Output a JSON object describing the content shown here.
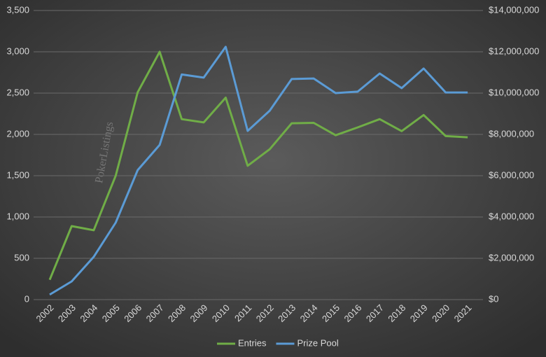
{
  "chart_data": {
    "type": "line",
    "watermark": "PokerListings",
    "categories": [
      "2002",
      "2003",
      "2004",
      "2005",
      "2006",
      "2007",
      "2008",
      "2009",
      "2010",
      "2011",
      "2012",
      "2013",
      "2014",
      "2015",
      "2016",
      "2017",
      "2018",
      "2019",
      "2020",
      "2021"
    ],
    "series": [
      {
        "name": "Entries",
        "color": "#70ad47",
        "values": [
          240,
          890,
          840,
          1500,
          2510,
          3000,
          2185,
          2145,
          2445,
          1620,
          1820,
          2135,
          2140,
          1990,
          2085,
          2185,
          2040,
          2235,
          1980,
          1965
        ]
      },
      {
        "name": "Prize Pool",
        "color": "#5b9bd5",
        "axis": "y2",
        "values": [
          240000,
          880000,
          2070000,
          3730000,
          6270000,
          7490000,
          10900000,
          10750000,
          12240000,
          8170000,
          9150000,
          10680000,
          10710000,
          10000000,
          10070000,
          10950000,
          10240000,
          11190000,
          10030000,
          10030000
        ]
      }
    ],
    "ylim": [
      0,
      3500
    ],
    "yticks": [
      0,
      500,
      {
        "value": 1000,
        "label": "1,000"
      },
      {
        "value": 1500,
        "label": "1,500"
      },
      {
        "value": 2000,
        "label": "2,000"
      },
      {
        "value": 2500,
        "label": "2,500"
      },
      {
        "value": 3000,
        "label": "3,000"
      },
      {
        "value": 3500,
        "label": "3,500"
      }
    ],
    "y2lim": [
      0,
      14000000
    ],
    "y2ticks": [
      {
        "value": 0,
        "label": "$0"
      },
      {
        "value": 2000000,
        "label": "$2,000,000"
      },
      {
        "value": 4000000,
        "label": "$4,000,000"
      },
      {
        "value": 6000000,
        "label": "$6,000,000"
      },
      {
        "value": 8000000,
        "label": "$8,000,000"
      },
      {
        "value": 10000000,
        "label": "$10,000,000"
      },
      {
        "value": 12000000,
        "label": "$12,000,000"
      },
      {
        "value": 14000000,
        "label": "$14,000,000"
      }
    ],
    "grid": true,
    "legend": "bottom"
  }
}
